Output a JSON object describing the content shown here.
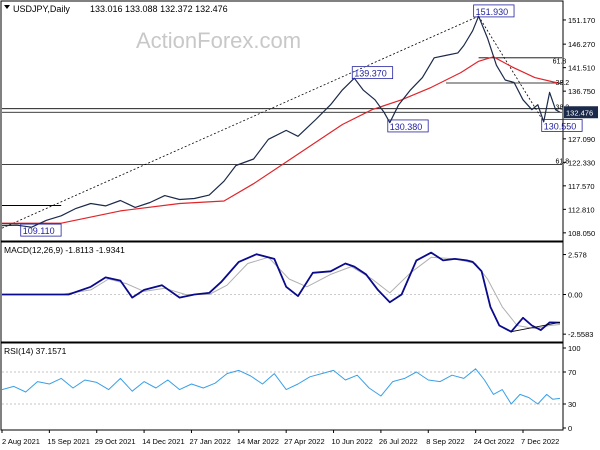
{
  "header": {
    "symbol_timeframe": "USDJPY,Daily",
    "ohlc": "133.016 133.088 132.372 132.476"
  },
  "watermark": "ActionForex.com",
  "colors": {
    "price": "#1b2a4a",
    "sma": "#e0252b",
    "macd_line": "#0a0a8c",
    "macd_signal": "#b0b0b0",
    "rsi": "#3aa0e8",
    "label_border": "#2323a0",
    "grid_line": "#000000",
    "last_price_bg": "#1b2a4a"
  },
  "chart_data": [
    {
      "type": "line",
      "panel": "price",
      "y_ticks": [
        "151.170",
        "146.270",
        "141.510",
        "136.750",
        "127.090",
        "122.330",
        "117.570",
        "112.810",
        "108.050"
      ],
      "y_tick_values": [
        151.17,
        146.27,
        141.51,
        136.75,
        127.09,
        122.33,
        117.57,
        112.81,
        108.05
      ],
      "ylim": [
        106.6,
        154.2
      ],
      "x_ticks": [
        "2 Aug 2021",
        "15 Sep 2021",
        "29 Oct 2021",
        "14 Dec 2021",
        "27 Jan 2022",
        "14 Mar 2022",
        "27 Apr 2022",
        "10 Jun 2022",
        "26 Jul 2022",
        "8 Sep 2022",
        "24 Oct 2022",
        "7 Dec 2022"
      ],
      "x_tick_index": [
        0,
        32,
        64,
        96,
        128,
        160,
        192,
        224,
        256,
        288,
        320,
        352
      ],
      "n_bars": 378,
      "series": [
        {
          "key": "price",
          "points": [
            [
              0,
              109.5
            ],
            [
              10,
              109.6
            ],
            [
              20,
              109.2
            ],
            [
              30,
              110.6
            ],
            [
              40,
              111.5
            ],
            [
              50,
              113.0
            ],
            [
              60,
              114.0
            ],
            [
              70,
              113.5
            ],
            [
              80,
              114.6
            ],
            [
              90,
              113.2
            ],
            [
              100,
              114.2
            ],
            [
              110,
              115.6
            ],
            [
              120,
              114.8
            ],
            [
              130,
              115.0
            ],
            [
              140,
              115.7
            ],
            [
              150,
              118.5
            ],
            [
              158,
              121.7
            ],
            [
              170,
              123.0
            ],
            [
              180,
              127.0
            ],
            [
              192,
              128.8
            ],
            [
              200,
              127.6
            ],
            [
              212,
              131.0
            ],
            [
              222,
              134.0
            ],
            [
              230,
              137.0
            ],
            [
              238,
              139.37
            ],
            [
              244,
              137.0
            ],
            [
              252,
              135.0
            ],
            [
              258,
              132.5
            ],
            [
              262,
              130.38
            ],
            [
              268,
              134.0
            ],
            [
              276,
              137.0
            ],
            [
              284,
              139.5
            ],
            [
              292,
              143.5
            ],
            [
              300,
              144.0
            ],
            [
              308,
              144.5
            ],
            [
              312,
              146.0
            ],
            [
              318,
              149.0
            ],
            [
              322,
              151.93
            ],
            [
              328,
              147.5
            ],
            [
              334,
              142.0
            ],
            [
              340,
              139.0
            ],
            [
              346,
              138.5
            ],
            [
              352,
              135.0
            ],
            [
              358,
              133.0
            ],
            [
              362,
              134.0
            ],
            [
              366,
              130.55
            ],
            [
              370,
              136.5
            ],
            [
              374,
              133.0
            ],
            [
              377,
              132.476
            ]
          ]
        },
        {
          "key": "sma",
          "points": [
            [
              0,
              110.0
            ],
            [
              40,
              110.0
            ],
            [
              80,
              112.5
            ],
            [
              120,
              114.0
            ],
            [
              150,
              114.5
            ],
            [
              170,
              118.0
            ],
            [
              190,
              122.0
            ],
            [
              210,
              126.0
            ],
            [
              230,
              130.0
            ],
            [
              250,
              133.0
            ],
            [
              270,
              135.0
            ],
            [
              290,
              137.5
            ],
            [
              310,
              140.5
            ],
            [
              322,
              142.8
            ],
            [
              332,
              143.7
            ],
            [
              345,
              141.6
            ],
            [
              360,
              139.5
            ],
            [
              377,
              138.3
            ]
          ]
        }
      ],
      "annotations": [
        {
          "text": "151.930",
          "x": 320,
          "y": 152.8
        },
        {
          "text": "139.370",
          "x": 238,
          "y": 140.3
        },
        {
          "text": "130.380",
          "x": 262,
          "y": 129.5
        },
        {
          "text": "130.550",
          "x": 366,
          "y": 129.6
        },
        {
          "text": "109.110",
          "x": 14,
          "y": 108.4
        },
        {
          "text": "61.8",
          "x": 372,
          "y": 143.0
        },
        {
          "text": "38.2",
          "x": 374,
          "y": 138.6
        },
        {
          "text": "38.2",
          "x": 374,
          "y": 133.6
        },
        {
          "text": "61.8",
          "x": 374,
          "y": 122.7
        }
      ],
      "levels": [
        {
          "y": 132.476,
          "style": "solid"
        },
        {
          "y": 133.2,
          "style": "solid"
        },
        {
          "y": 121.9,
          "style": "solid"
        }
      ],
      "last_price": "132.476"
    },
    {
      "type": "line",
      "panel": "macd",
      "title": "MACD(12,26,9) -1.8113 -1.9341",
      "y_ticks": [
        "2.578",
        "0.00",
        "-2.5583"
      ],
      "y_tick_values": [
        2.578,
        0.0,
        -2.5583
      ],
      "ylim": [
        -3.0,
        3.0
      ],
      "series": [
        {
          "key": "macd_line",
          "points": [
            [
              0,
              0.0
            ],
            [
              15,
              0.0
            ],
            [
              30,
              0.0
            ],
            [
              45,
              0.0
            ],
            [
              60,
              0.5
            ],
            [
              70,
              1.1
            ],
            [
              80,
              0.9
            ],
            [
              88,
              -0.2
            ],
            [
              96,
              0.3
            ],
            [
              108,
              0.6
            ],
            [
              120,
              -0.2
            ],
            [
              130,
              0.0
            ],
            [
              140,
              0.1
            ],
            [
              148,
              0.8
            ],
            [
              160,
              2.1
            ],
            [
              172,
              2.6
            ],
            [
              184,
              2.3
            ],
            [
              192,
              0.5
            ],
            [
              200,
              -0.1
            ],
            [
              210,
              1.4
            ],
            [
              222,
              1.5
            ],
            [
              232,
              2.0
            ],
            [
              238,
              1.8
            ],
            [
              246,
              1.3
            ],
            [
              254,
              0.3
            ],
            [
              262,
              -0.5
            ],
            [
              270,
              0.0
            ],
            [
              280,
              2.2
            ],
            [
              290,
              2.7
            ],
            [
              298,
              2.2
            ],
            [
              306,
              2.3
            ],
            [
              314,
              2.2
            ],
            [
              318,
              2.1
            ],
            [
              324,
              1.5
            ],
            [
              330,
              -0.8
            ],
            [
              336,
              -2.0
            ],
            [
              344,
              -2.4
            ],
            [
              352,
              -1.5
            ],
            [
              358,
              -2.0
            ],
            [
              364,
              -2.3
            ],
            [
              370,
              -1.8
            ],
            [
              377,
              -1.8113
            ]
          ]
        },
        {
          "key": "macd_signal",
          "points": [
            [
              0,
              0.0
            ],
            [
              40,
              0.0
            ],
            [
              60,
              0.3
            ],
            [
              72,
              1.0
            ],
            [
              84,
              0.7
            ],
            [
              96,
              0.2
            ],
            [
              110,
              0.4
            ],
            [
              124,
              0.0
            ],
            [
              140,
              0.0
            ],
            [
              152,
              0.6
            ],
            [
              166,
              2.0
            ],
            [
              180,
              2.4
            ],
            [
              194,
              1.0
            ],
            [
              206,
              0.5
            ],
            [
              222,
              1.3
            ],
            [
              236,
              1.8
            ],
            [
              250,
              1.0
            ],
            [
              262,
              0.1
            ],
            [
              276,
              1.4
            ],
            [
              290,
              2.4
            ],
            [
              306,
              2.3
            ],
            [
              320,
              2.0
            ],
            [
              328,
              1.0
            ],
            [
              338,
              -0.8
            ],
            [
              348,
              -2.0
            ],
            [
              360,
              -2.2
            ],
            [
              370,
              -2.0
            ],
            [
              377,
              -1.9341
            ]
          ]
        }
      ]
    },
    {
      "type": "line",
      "panel": "rsi",
      "title": "RSI(14) 37.1571",
      "y_ticks": [
        "100",
        "70",
        "30",
        "0"
      ],
      "y_tick_values": [
        100,
        70,
        30,
        0
      ],
      "ylim": [
        0,
        100
      ],
      "series": [
        {
          "key": "rsi",
          "points": [
            [
              0,
              48
            ],
            [
              8,
              52
            ],
            [
              16,
              45
            ],
            [
              24,
              58
            ],
            [
              32,
              55
            ],
            [
              40,
              62
            ],
            [
              48,
              50
            ],
            [
              56,
              60
            ],
            [
              64,
              57
            ],
            [
              72,
              48
            ],
            [
              80,
              62
            ],
            [
              88,
              46
            ],
            [
              96,
              58
            ],
            [
              104,
              50
            ],
            [
              112,
              60
            ],
            [
              120,
              48
            ],
            [
              128,
              55
            ],
            [
              136,
              50
            ],
            [
              144,
              56
            ],
            [
              152,
              68
            ],
            [
              160,
              72
            ],
            [
              168,
              65
            ],
            [
              176,
              55
            ],
            [
              184,
              68
            ],
            [
              192,
              48
            ],
            [
              200,
              55
            ],
            [
              208,
              64
            ],
            [
              216,
              68
            ],
            [
              224,
              72
            ],
            [
              232,
              60
            ],
            [
              240,
              66
            ],
            [
              248,
              50
            ],
            [
              256,
              40
            ],
            [
              264,
              58
            ],
            [
              272,
              62
            ],
            [
              280,
              70
            ],
            [
              288,
              60
            ],
            [
              296,
              58
            ],
            [
              304,
              66
            ],
            [
              312,
              62
            ],
            [
              320,
              74
            ],
            [
              326,
              60
            ],
            [
              332,
              42
            ],
            [
              338,
              48
            ],
            [
              344,
              30
            ],
            [
              350,
              42
            ],
            [
              356,
              38
            ],
            [
              362,
              30
            ],
            [
              368,
              42
            ],
            [
              372,
              36
            ],
            [
              377,
              37
            ]
          ]
        }
      ]
    }
  ]
}
